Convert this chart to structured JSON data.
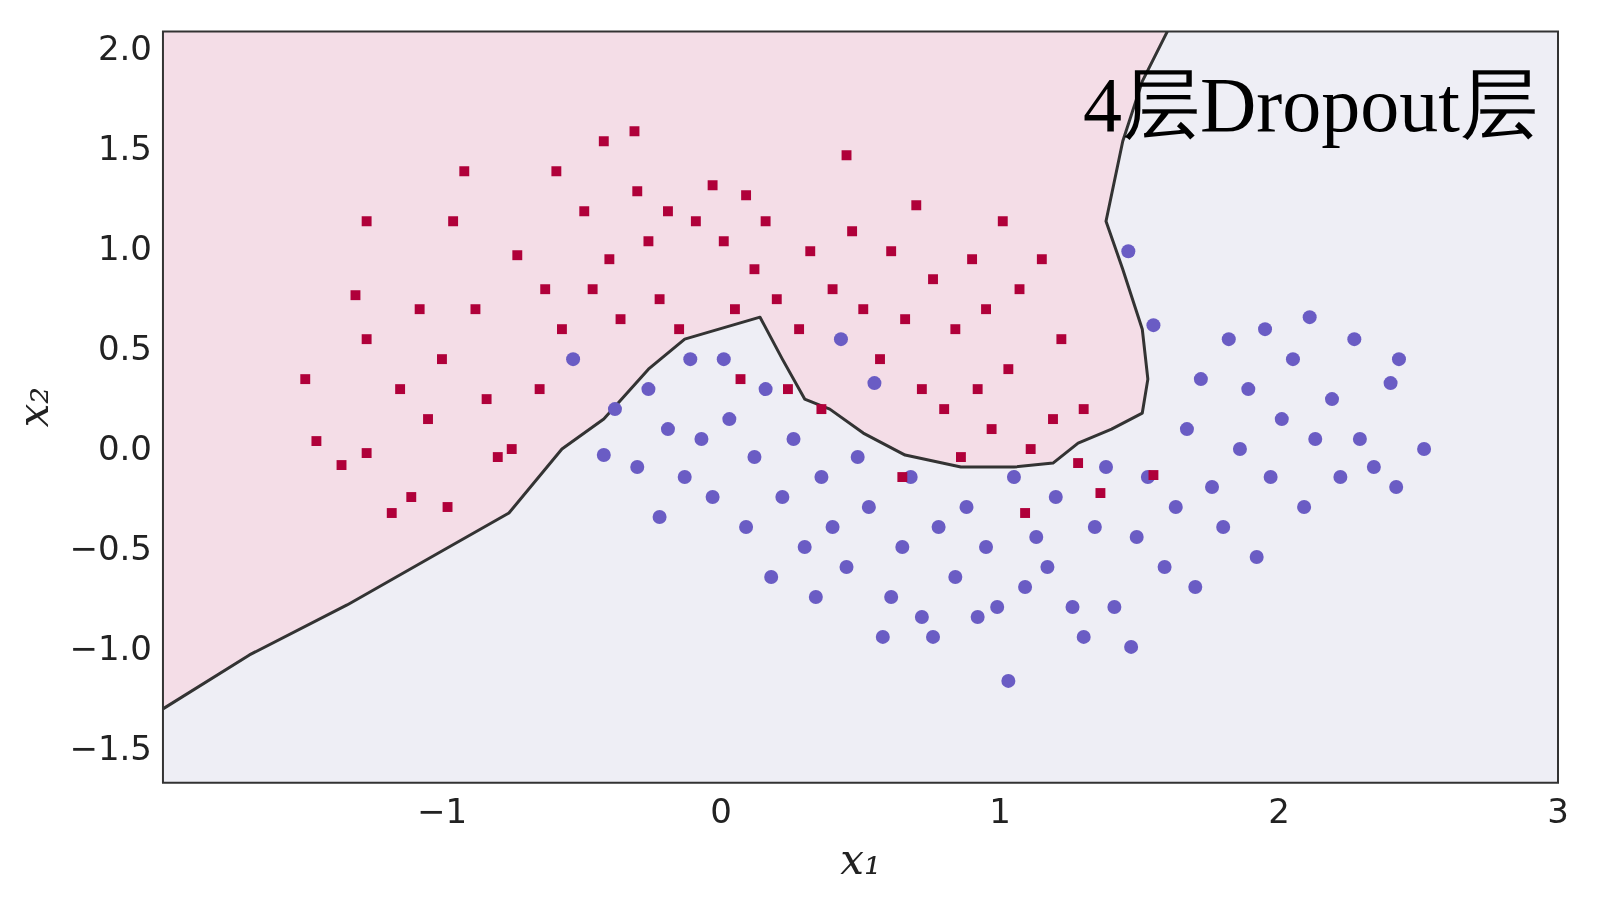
{
  "chart_data": {
    "type": "scatter",
    "xlabel": "x₁",
    "ylabel": "x₂",
    "annotations": [
      "4层Dropout层"
    ],
    "xlim": [
      -2,
      3
    ],
    "ylim": [
      -1.66,
      2.1
    ],
    "xticks": [
      {
        "value": -1,
        "label": "−1"
      },
      0,
      1,
      2,
      3
    ],
    "yticks": [
      {
        "value": -1.5,
        "label": "−1.5"
      },
      {
        "value": -1,
        "label": "−1.0"
      },
      {
        "value": -0.5,
        "label": "−0.5"
      },
      {
        "value": 0,
        "label": "0.0"
      },
      {
        "value": 0.5,
        "label": "0.5"
      },
      {
        "value": 1,
        "label": "1.0"
      },
      {
        "value": 1.5,
        "label": "1.5"
      },
      {
        "value": 2,
        "label": "2.0"
      }
    ],
    "grid": false,
    "legend": false,
    "series": [
      {
        "type": "scatter",
        "marker": "square",
        "color": "#b0003a",
        "x": [
          -1.49,
          -1.45,
          -1.36,
          -1.31,
          -1.27,
          -1.27,
          -1.27,
          -1.18,
          -1.15,
          -1.11,
          -1.08,
          -1.05,
          -0.98,
          -1.0,
          -0.96,
          -0.92,
          -0.88,
          -0.84,
          -0.8,
          -0.75,
          -0.73,
          -0.65,
          -0.63,
          -0.59,
          -0.57,
          -0.49,
          -0.46,
          -0.42,
          -0.4,
          -0.36,
          -0.31,
          -0.3,
          -0.26,
          -0.22,
          -0.19,
          -0.15,
          -0.09,
          -0.03,
          0.01,
          0.05,
          0.07,
          0.09,
          0.12,
          0.16,
          0.2,
          0.24,
          0.28,
          0.32,
          0.36,
          0.4,
          0.45,
          0.47,
          0.51,
          0.57,
          0.61,
          0.65,
          0.66,
          0.7,
          0.72,
          0.76,
          0.8,
          0.84,
          0.86,
          0.9,
          0.92,
          0.95,
          0.97,
          1.01,
          1.03,
          1.07,
          1.09,
          1.11,
          1.15,
          1.19,
          1.22,
          1.28,
          1.3,
          1.36,
          1.55
        ],
        "values": [
          0.36,
          0.05,
          -0.07,
          0.78,
          1.15,
          0.56,
          -0.01,
          -0.31,
          0.31,
          -0.23,
          0.71,
          0.16,
          -0.28,
          0.46,
          1.15,
          1.4,
          0.71,
          0.26,
          -0.03,
          0.01,
          0.98,
          0.31,
          0.81,
          1.4,
          0.61,
          1.2,
          0.81,
          1.55,
          0.96,
          0.66,
          1.6,
          1.3,
          1.05,
          0.76,
          1.2,
          0.61,
          1.15,
          1.33,
          1.05,
          0.71,
          0.36,
          1.28,
          0.91,
          1.15,
          0.76,
          0.31,
          0.61,
          1.0,
          0.21,
          0.81,
          1.48,
          1.1,
          0.71,
          0.46,
          1.0,
          -0.13,
          0.66,
          1.23,
          0.31,
          0.86,
          0.21,
          0.61,
          -0.03,
          0.96,
          0.31,
          0.71,
          0.11,
          1.15,
          0.41,
          0.81,
          -0.31,
          0.01,
          0.96,
          0.16,
          0.56,
          -0.06,
          0.21,
          -0.21,
          -0.12
        ]
      },
      {
        "type": "scatter",
        "marker": "circle",
        "color": "#6a5cc4",
        "x": [
          -0.53,
          -0.42,
          -0.38,
          -0.3,
          -0.26,
          -0.22,
          -0.19,
          -0.13,
          -0.11,
          -0.07,
          -0.03,
          0.01,
          0.03,
          0.09,
          0.12,
          0.16,
          0.18,
          0.22,
          0.26,
          0.3,
          0.34,
          0.36,
          0.4,
          0.43,
          0.45,
          0.49,
          0.53,
          0.55,
          0.58,
          0.61,
          0.65,
          0.68,
          0.72,
          0.76,
          0.78,
          0.84,
          0.88,
          0.92,
          0.95,
          0.99,
          1.03,
          1.05,
          1.09,
          1.13,
          1.17,
          1.2,
          1.26,
          1.3,
          1.34,
          1.38,
          1.41,
          1.46,
          1.47,
          1.49,
          1.53,
          1.55,
          1.59,
          1.63,
          1.67,
          1.7,
          1.72,
          1.76,
          1.8,
          1.82,
          1.86,
          1.89,
          1.92,
          1.95,
          1.97,
          2.01,
          2.05,
          2.09,
          2.11,
          2.13,
          2.19,
          2.22,
          2.27,
          2.29,
          2.34,
          2.4,
          2.42,
          2.43,
          2.52
        ],
        "values": [
          0.46,
          -0.02,
          0.21,
          -0.08,
          0.31,
          -0.33,
          0.11,
          -0.13,
          0.46,
          0.06,
          -0.23,
          0.46,
          0.16,
          -0.38,
          -0.03,
          0.31,
          -0.63,
          -0.23,
          0.06,
          -0.48,
          -0.73,
          -0.13,
          -0.38,
          0.56,
          -0.58,
          -0.03,
          -0.28,
          0.34,
          -0.93,
          -0.73,
          -0.48,
          -0.13,
          -0.83,
          -0.93,
          -0.38,
          -0.63,
          -0.28,
          -0.83,
          -0.48,
          -0.78,
          -1.15,
          -0.13,
          -0.68,
          -0.43,
          -0.58,
          -0.23,
          -0.78,
          -0.93,
          -0.38,
          -0.08,
          -0.78,
          1.0,
          -0.98,
          -0.43,
          -0.13,
          0.63,
          -0.58,
          -0.28,
          0.11,
          -0.68,
          0.36,
          -0.18,
          -0.38,
          0.56,
          0.01,
          0.31,
          -0.53,
          0.61,
          -0.13,
          0.16,
          0.46,
          -0.28,
          0.67,
          0.06,
          0.26,
          -0.13,
          0.56,
          0.06,
          -0.08,
          0.34,
          -0.18,
          0.46,
          0.01
        ]
      },
      {
        "type": "line",
        "color": "#333333",
        "line_style": "solid",
        "marker": "none",
        "x": [
          -2.0,
          -1.69,
          -1.34,
          -1.0,
          -0.76,
          -0.57,
          -0.42,
          -0.26,
          -0.13,
          0.14,
          0.22,
          0.3,
          0.39,
          0.51,
          0.66,
          0.86,
          1.05,
          1.19,
          1.28,
          1.4,
          1.51,
          1.53,
          1.51,
          1.44,
          1.38,
          1.44,
          1.51,
          1.6
        ],
        "values": [
          -1.29,
          -1.02,
          -0.77,
          -0.5,
          -0.31,
          0.01,
          0.16,
          0.41,
          0.56,
          0.67,
          0.46,
          0.26,
          0.21,
          0.09,
          -0.02,
          -0.08,
          -0.08,
          -0.06,
          0.04,
          0.11,
          0.19,
          0.36,
          0.61,
          0.91,
          1.15,
          1.55,
          1.85,
          2.1
        ]
      }
    ]
  }
}
